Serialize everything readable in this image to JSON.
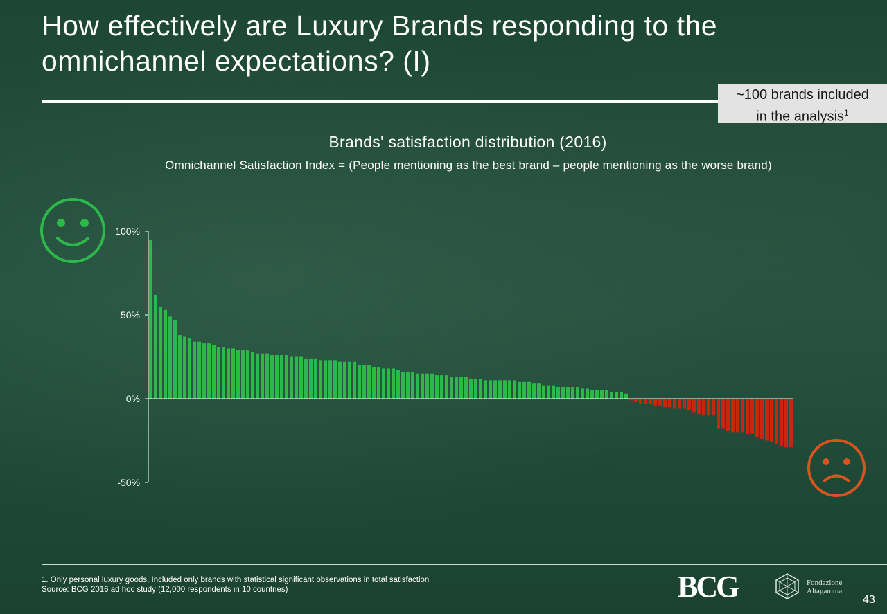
{
  "slide": {
    "title": "How  effectively are Luxury Brands responding to the\nomnichannel expectations? (I)",
    "note_line1": "~100 brands included",
    "note_line2": "in the analysis",
    "note_sup": "1",
    "footnote_1": "1.  Only personal luxury goods, Included only brands with statistical significant observations in total satisfaction",
    "footnote_source": "Source: BCG 2016 ad hoc study (12,000 respondents in 10 countries)",
    "logo_bcg": "BCG",
    "logo_fa_line1": "Fondazione",
    "logo_fa_line2": "Altagamma",
    "page_number": "43",
    "icons": [
      "happy-face-icon",
      "sad-face-icon",
      "altagamma-logo-icon"
    ]
  },
  "colors": {
    "positive": "#2db84a",
    "negative": "#c8260f",
    "happy_icon": "#2db84a",
    "sad_icon": "#d9531e"
  },
  "chart_data": {
    "type": "bar",
    "title": "Brands' satisfaction distribution (2016)",
    "subtitle": "Omnichannel Satisfaction Index = (People mentioning as the best brand – people mentioning as the worse brand)",
    "ylim": [
      -50,
      100
    ],
    "yticks": [
      100,
      50,
      0,
      -50
    ],
    "ytick_labels": [
      "100%",
      "50%",
      "0%",
      "-50%"
    ],
    "values": [
      95,
      62,
      55,
      53,
      49,
      47,
      38,
      37,
      36,
      34,
      34,
      33,
      33,
      32,
      31,
      31,
      30,
      30,
      29,
      29,
      29,
      28,
      27,
      27,
      27,
      26,
      26,
      26,
      26,
      25,
      25,
      25,
      24,
      24,
      24,
      23,
      23,
      23,
      23,
      22,
      22,
      22,
      22,
      20,
      20,
      20,
      19,
      19,
      18,
      18,
      18,
      17,
      16,
      16,
      16,
      15,
      15,
      15,
      15,
      14,
      14,
      14,
      13,
      13,
      13,
      13,
      12,
      12,
      12,
      11,
      11,
      11,
      11,
      11,
      11,
      11,
      10,
      10,
      10,
      9,
      9,
      8,
      8,
      8,
      7,
      7,
      7,
      7,
      7,
      6,
      6,
      5,
      5,
      5,
      5,
      4,
      4,
      4,
      3,
      -1,
      -2,
      -3,
      -3,
      -3,
      -4,
      -4,
      -5,
      -5,
      -6,
      -6,
      -6,
      -7,
      -8,
      -9,
      -10,
      -10,
      -10,
      -18,
      -18,
      -19,
      -20,
      -20,
      -20,
      -21,
      -21,
      -23,
      -24,
      -25,
      -26,
      -27,
      -28,
      -29,
      -29
    ]
  }
}
